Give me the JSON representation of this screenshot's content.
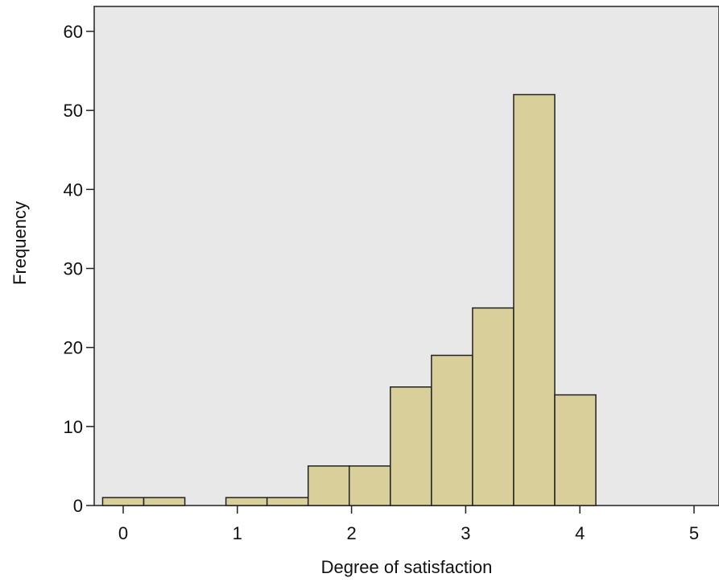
{
  "chart_data": {
    "type": "bar",
    "xlabel": "Degree of satisfaction",
    "ylabel": "Frequency",
    "xlim": [
      -0.2,
      5.0
    ],
    "ylim": [
      0,
      62
    ],
    "x_ticks": [
      0,
      1,
      2,
      3,
      4,
      5
    ],
    "y_ticks": [
      0,
      10,
      20,
      30,
      40,
      50,
      60
    ],
    "bins": [
      {
        "x0": -0.18,
        "x1": 0.18,
        "count": 1
      },
      {
        "x0": 0.18,
        "x1": 0.54,
        "count": 1
      },
      {
        "x0": 0.9,
        "x1": 1.26,
        "count": 1
      },
      {
        "x0": 1.26,
        "x1": 1.62,
        "count": 1
      },
      {
        "x0": 1.62,
        "x1": 1.98,
        "count": 5
      },
      {
        "x0": 1.98,
        "x1": 2.34,
        "count": 5
      },
      {
        "x0": 2.34,
        "x1": 2.7,
        "count": 15
      },
      {
        "x0": 2.7,
        "x1": 3.06,
        "count": 19
      },
      {
        "x0": 3.06,
        "x1": 3.42,
        "count": 25
      },
      {
        "x0": 3.42,
        "x1": 3.78,
        "count": 52
      },
      {
        "x0": 3.78,
        "x1": 4.14,
        "count": 14
      }
    ],
    "grid": false,
    "colors": {
      "plot_background": "#e8e8e8",
      "bar_fill": "#d9cf9a",
      "bar_stroke": "#222222",
      "axis": "#222222"
    }
  }
}
